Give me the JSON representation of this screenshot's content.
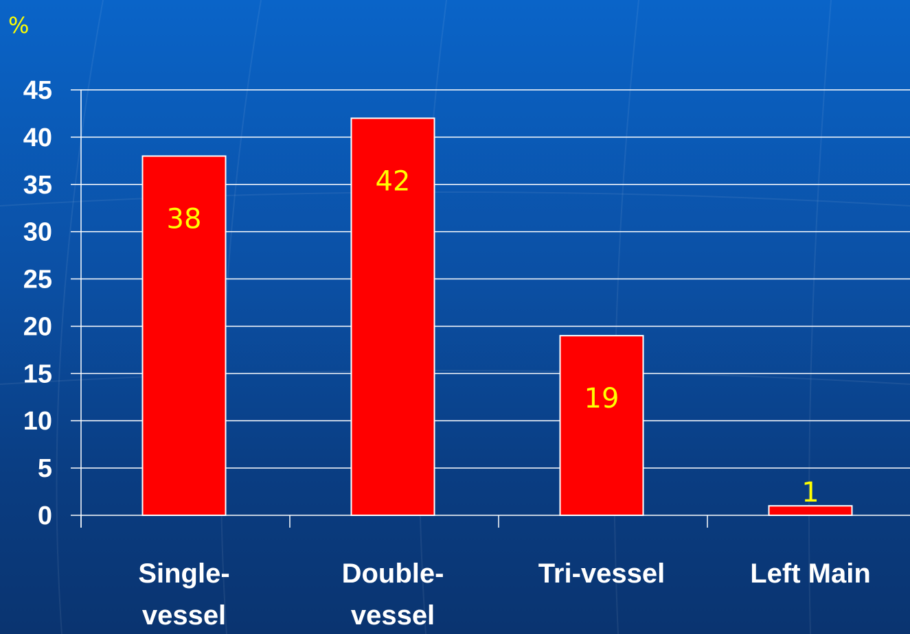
{
  "colors": {
    "bar_fill": "#ff0000",
    "bar_stroke": "#ffffff",
    "grid": "#ffffff",
    "data_label": "#ffff00",
    "axis_text": "#ffffff"
  },
  "chart_data": {
    "type": "bar",
    "y_unit_label": "%",
    "categories": [
      "Single-vessel",
      "Double-vessel",
      "Tri-vessel",
      "Left Main"
    ],
    "category_label_lines": [
      [
        "Single-",
        "vessel"
      ],
      [
        "Double-",
        "vessel"
      ],
      [
        "Tri-vessel"
      ],
      [
        "Left Main"
      ]
    ],
    "values": [
      38,
      42,
      19,
      1
    ],
    "data_labels": [
      "38",
      "42",
      "19",
      "1"
    ],
    "ylim": [
      0,
      45
    ],
    "yticks": [
      0,
      5,
      10,
      15,
      20,
      25,
      30,
      35,
      40,
      45
    ],
    "grid": true,
    "legend": "none"
  }
}
